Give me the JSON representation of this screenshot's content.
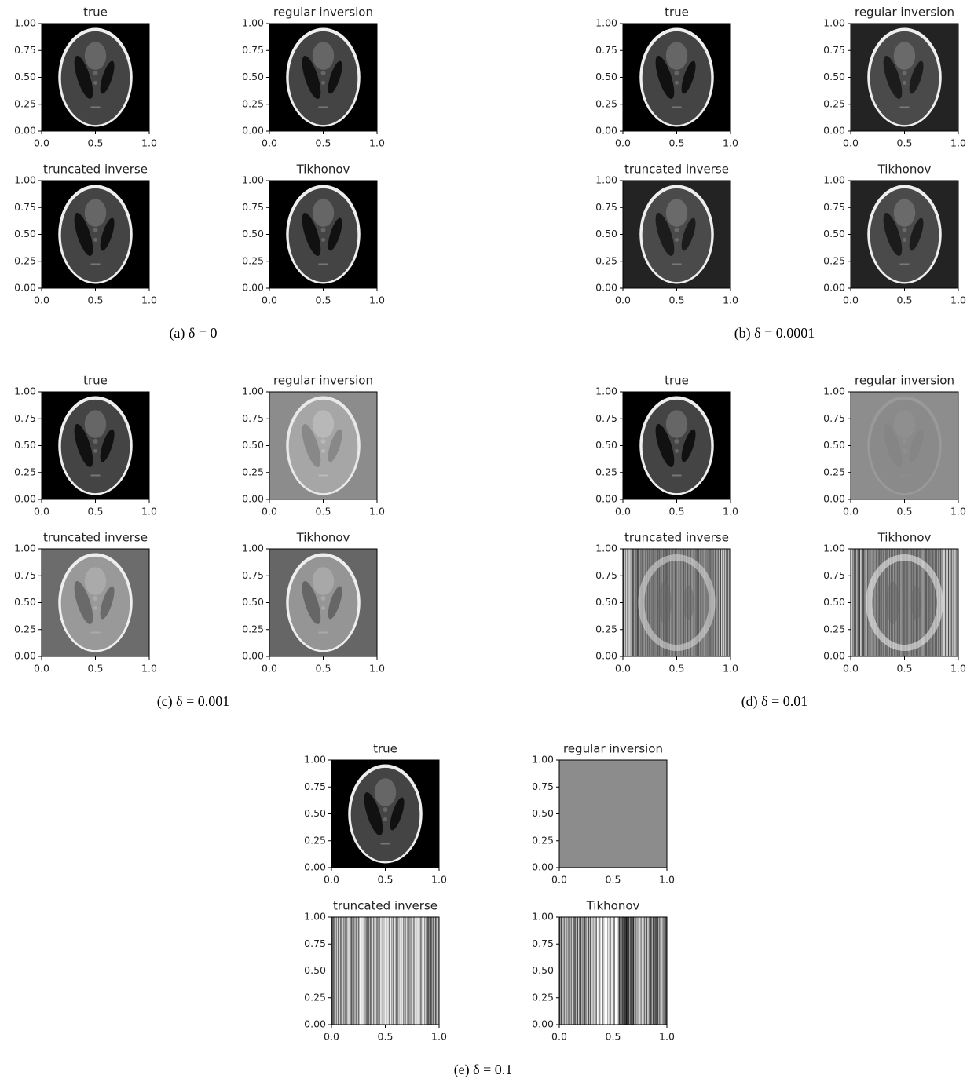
{
  "figures": [
    {
      "caption": "(a) δ = 0",
      "panels": [
        {
          "title": "true",
          "xlim": [
            0,
            1
          ],
          "ylim": [
            0,
            1
          ],
          "xticks": [
            {
              "value": 0,
              "label": "0.0"
            },
            {
              "value": 0.5,
              "label": "0.5"
            },
            {
              "value": 1,
              "label": "1.0"
            }
          ],
          "yticks": [
            {
              "value": 0,
              "label": "0.00"
            },
            {
              "value": 0.25,
              "label": "0.25"
            },
            {
              "value": 0.5,
              "label": "0.50"
            },
            {
              "value": 0.75,
              "label": "0.75"
            },
            {
              "value": 1,
              "label": "1.00"
            }
          ]
        },
        {
          "title": "regular inversion",
          "xlim": [
            0,
            1
          ],
          "ylim": [
            0,
            1
          ],
          "xticks": [
            {
              "value": 0,
              "label": "0.0"
            },
            {
              "value": 0.5,
              "label": "0.5"
            },
            {
              "value": 1,
              "label": "1.0"
            }
          ],
          "yticks": [
            {
              "value": 0,
              "label": "0.00"
            },
            {
              "value": 0.25,
              "label": "0.25"
            },
            {
              "value": 0.5,
              "label": "0.50"
            },
            {
              "value": 0.75,
              "label": "0.75"
            },
            {
              "value": 1,
              "label": "1.00"
            }
          ]
        },
        {
          "title": "truncated inverse",
          "xlim": [
            0,
            1
          ],
          "ylim": [
            0,
            1
          ],
          "xticks": [
            {
              "value": 0,
              "label": "0.0"
            },
            {
              "value": 0.5,
              "label": "0.5"
            },
            {
              "value": 1,
              "label": "1.0"
            }
          ],
          "yticks": [
            {
              "value": 0,
              "label": "0.00"
            },
            {
              "value": 0.25,
              "label": "0.25"
            },
            {
              "value": 0.5,
              "label": "0.50"
            },
            {
              "value": 0.75,
              "label": "0.75"
            },
            {
              "value": 1,
              "label": "1.00"
            }
          ]
        },
        {
          "title": "Tikhonov",
          "xlim": [
            0,
            1
          ],
          "ylim": [
            0,
            1
          ],
          "xticks": [
            {
              "value": 0,
              "label": "0.0"
            },
            {
              "value": 0.5,
              "label": "0.5"
            },
            {
              "value": 1,
              "label": "1.0"
            }
          ],
          "yticks": [
            {
              "value": 0,
              "label": "0.00"
            },
            {
              "value": 0.25,
              "label": "0.25"
            },
            {
              "value": 0.5,
              "label": "0.50"
            },
            {
              "value": 0.75,
              "label": "0.75"
            },
            {
              "value": 1,
              "label": "1.00"
            }
          ]
        }
      ]
    },
    {
      "caption": "(b) δ = 0.0001",
      "panels": [
        {
          "title": "true",
          "xlim": [
            0,
            1
          ],
          "ylim": [
            0,
            1
          ],
          "xticks": [
            {
              "value": 0,
              "label": "0.0"
            },
            {
              "value": 0.5,
              "label": "0.5"
            },
            {
              "value": 1,
              "label": "1.0"
            }
          ],
          "yticks": [
            {
              "value": 0,
              "label": "0.00"
            },
            {
              "value": 0.25,
              "label": "0.25"
            },
            {
              "value": 0.5,
              "label": "0.50"
            },
            {
              "value": 0.75,
              "label": "0.75"
            },
            {
              "value": 1,
              "label": "1.00"
            }
          ]
        },
        {
          "title": "regular inversion",
          "xlim": [
            0,
            1
          ],
          "ylim": [
            0,
            1
          ],
          "xticks": [
            {
              "value": 0,
              "label": "0.0"
            },
            {
              "value": 0.5,
              "label": "0.5"
            },
            {
              "value": 1,
              "label": "1.0"
            }
          ],
          "yticks": [
            {
              "value": 0,
              "label": "0.00"
            },
            {
              "value": 0.25,
              "label": "0.25"
            },
            {
              "value": 0.5,
              "label": "0.50"
            },
            {
              "value": 0.75,
              "label": "0.75"
            },
            {
              "value": 1,
              "label": "1.00"
            }
          ]
        },
        {
          "title": "truncated inverse",
          "xlim": [
            0,
            1
          ],
          "ylim": [
            0,
            1
          ],
          "xticks": [
            {
              "value": 0,
              "label": "0.0"
            },
            {
              "value": 0.5,
              "label": "0.5"
            },
            {
              "value": 1,
              "label": "1.0"
            }
          ],
          "yticks": [
            {
              "value": 0,
              "label": "0.00"
            },
            {
              "value": 0.25,
              "label": "0.25"
            },
            {
              "value": 0.5,
              "label": "0.50"
            },
            {
              "value": 0.75,
              "label": "0.75"
            },
            {
              "value": 1,
              "label": "1.00"
            }
          ]
        },
        {
          "title": "Tikhonov",
          "xlim": [
            0,
            1
          ],
          "ylim": [
            0,
            1
          ],
          "xticks": [
            {
              "value": 0,
              "label": "0.0"
            },
            {
              "value": 0.5,
              "label": "0.5"
            },
            {
              "value": 1,
              "label": "1.0"
            }
          ],
          "yticks": [
            {
              "value": 0,
              "label": "0.00"
            },
            {
              "value": 0.25,
              "label": "0.25"
            },
            {
              "value": 0.5,
              "label": "0.50"
            },
            {
              "value": 0.75,
              "label": "0.75"
            },
            {
              "value": 1,
              "label": "1.00"
            }
          ]
        }
      ]
    },
    {
      "caption": "(c) δ = 0.001",
      "panels": [
        {
          "title": "true",
          "xlim": [
            0,
            1
          ],
          "ylim": [
            0,
            1
          ],
          "xticks": [
            {
              "value": 0,
              "label": "0.0"
            },
            {
              "value": 0.5,
              "label": "0.5"
            },
            {
              "value": 1,
              "label": "1.0"
            }
          ],
          "yticks": [
            {
              "value": 0,
              "label": "0.00"
            },
            {
              "value": 0.25,
              "label": "0.25"
            },
            {
              "value": 0.5,
              "label": "0.50"
            },
            {
              "value": 0.75,
              "label": "0.75"
            },
            {
              "value": 1,
              "label": "1.00"
            }
          ]
        },
        {
          "title": "regular inversion",
          "xlim": [
            0,
            1
          ],
          "ylim": [
            0,
            1
          ],
          "xticks": [
            {
              "value": 0,
              "label": "0.0"
            },
            {
              "value": 0.5,
              "label": "0.5"
            },
            {
              "value": 1,
              "label": "1.0"
            }
          ],
          "yticks": [
            {
              "value": 0,
              "label": "0.00"
            },
            {
              "value": 0.25,
              "label": "0.25"
            },
            {
              "value": 0.5,
              "label": "0.50"
            },
            {
              "value": 0.75,
              "label": "0.75"
            },
            {
              "value": 1,
              "label": "1.00"
            }
          ]
        },
        {
          "title": "truncated inverse",
          "xlim": [
            0,
            1
          ],
          "ylim": [
            0,
            1
          ],
          "xticks": [
            {
              "value": 0,
              "label": "0.0"
            },
            {
              "value": 0.5,
              "label": "0.5"
            },
            {
              "value": 1,
              "label": "1.0"
            }
          ],
          "yticks": [
            {
              "value": 0,
              "label": "0.00"
            },
            {
              "value": 0.25,
              "label": "0.25"
            },
            {
              "value": 0.5,
              "label": "0.50"
            },
            {
              "value": 0.75,
              "label": "0.75"
            },
            {
              "value": 1,
              "label": "1.00"
            }
          ]
        },
        {
          "title": "Tikhonov",
          "xlim": [
            0,
            1
          ],
          "ylim": [
            0,
            1
          ],
          "xticks": [
            {
              "value": 0,
              "label": "0.0"
            },
            {
              "value": 0.5,
              "label": "0.5"
            },
            {
              "value": 1,
              "label": "1.0"
            }
          ],
          "yticks": [
            {
              "value": 0,
              "label": "0.00"
            },
            {
              "value": 0.25,
              "label": "0.25"
            },
            {
              "value": 0.5,
              "label": "0.50"
            },
            {
              "value": 0.75,
              "label": "0.75"
            },
            {
              "value": 1,
              "label": "1.00"
            }
          ]
        }
      ]
    },
    {
      "caption": "(d) δ = 0.01",
      "panels": [
        {
          "title": "true",
          "xlim": [
            0,
            1
          ],
          "ylim": [
            0,
            1
          ],
          "xticks": [
            {
              "value": 0,
              "label": "0.0"
            },
            {
              "value": 0.5,
              "label": "0.5"
            },
            {
              "value": 1,
              "label": "1.0"
            }
          ],
          "yticks": [
            {
              "value": 0,
              "label": "0.00"
            },
            {
              "value": 0.25,
              "label": "0.25"
            },
            {
              "value": 0.5,
              "label": "0.50"
            },
            {
              "value": 0.75,
              "label": "0.75"
            },
            {
              "value": 1,
              "label": "1.00"
            }
          ]
        },
        {
          "title": "regular inversion",
          "xlim": [
            0,
            1
          ],
          "ylim": [
            0,
            1
          ],
          "xticks": [
            {
              "value": 0,
              "label": "0.0"
            },
            {
              "value": 0.5,
              "label": "0.5"
            },
            {
              "value": 1,
              "label": "1.0"
            }
          ],
          "yticks": [
            {
              "value": 0,
              "label": "0.00"
            },
            {
              "value": 0.25,
              "label": "0.25"
            },
            {
              "value": 0.5,
              "label": "0.50"
            },
            {
              "value": 0.75,
              "label": "0.75"
            },
            {
              "value": 1,
              "label": "1.00"
            }
          ]
        },
        {
          "title": "truncated inverse",
          "xlim": [
            0,
            1
          ],
          "ylim": [
            0,
            1
          ],
          "xticks": [
            {
              "value": 0,
              "label": "0.0"
            },
            {
              "value": 0.5,
              "label": "0.5"
            },
            {
              "value": 1,
              "label": "1.0"
            }
          ],
          "yticks": [
            {
              "value": 0,
              "label": "0.00"
            },
            {
              "value": 0.25,
              "label": "0.25"
            },
            {
              "value": 0.5,
              "label": "0.50"
            },
            {
              "value": 0.75,
              "label": "0.75"
            },
            {
              "value": 1,
              "label": "1.00"
            }
          ]
        },
        {
          "title": "Tikhonov",
          "xlim": [
            0,
            1
          ],
          "ylim": [
            0,
            1
          ],
          "xticks": [
            {
              "value": 0,
              "label": "0.0"
            },
            {
              "value": 0.5,
              "label": "0.5"
            },
            {
              "value": 1,
              "label": "1.0"
            }
          ],
          "yticks": [
            {
              "value": 0,
              "label": "0.00"
            },
            {
              "value": 0.25,
              "label": "0.25"
            },
            {
              "value": 0.5,
              "label": "0.50"
            },
            {
              "value": 0.75,
              "label": "0.75"
            },
            {
              "value": 1,
              "label": "1.00"
            }
          ]
        }
      ]
    },
    {
      "caption": "(e) δ = 0.1",
      "panels": [
        {
          "title": "true",
          "xlim": [
            0,
            1
          ],
          "ylim": [
            0,
            1
          ],
          "xticks": [
            {
              "value": 0,
              "label": "0.0"
            },
            {
              "value": 0.5,
              "label": "0.5"
            },
            {
              "value": 1,
              "label": "1.0"
            }
          ],
          "yticks": [
            {
              "value": 0,
              "label": "0.00"
            },
            {
              "value": 0.25,
              "label": "0.25"
            },
            {
              "value": 0.5,
              "label": "0.50"
            },
            {
              "value": 0.75,
              "label": "0.75"
            },
            {
              "value": 1,
              "label": "1.00"
            }
          ]
        },
        {
          "title": "regular inversion",
          "xlim": [
            0,
            1
          ],
          "ylim": [
            0,
            1
          ],
          "xticks": [
            {
              "value": 0,
              "label": "0.0"
            },
            {
              "value": 0.5,
              "label": "0.5"
            },
            {
              "value": 1,
              "label": "1.0"
            }
          ],
          "yticks": [
            {
              "value": 0,
              "label": "0.00"
            },
            {
              "value": 0.25,
              "label": "0.25"
            },
            {
              "value": 0.5,
              "label": "0.50"
            },
            {
              "value": 0.75,
              "label": "0.75"
            },
            {
              "value": 1,
              "label": "1.00"
            }
          ]
        },
        {
          "title": "truncated inverse",
          "xlim": [
            0,
            1
          ],
          "ylim": [
            0,
            1
          ],
          "xticks": [
            {
              "value": 0,
              "label": "0.0"
            },
            {
              "value": 0.5,
              "label": "0.5"
            },
            {
              "value": 1,
              "label": "1.0"
            }
          ],
          "yticks": [
            {
              "value": 0,
              "label": "0.00"
            },
            {
              "value": 0.25,
              "label": "0.25"
            },
            {
              "value": 0.5,
              "label": "0.50"
            },
            {
              "value": 0.75,
              "label": "0.75"
            },
            {
              "value": 1,
              "label": "1.00"
            }
          ]
        },
        {
          "title": "Tikhonov",
          "xlim": [
            0,
            1
          ],
          "ylim": [
            0,
            1
          ],
          "xticks": [
            {
              "value": 0,
              "label": "0.0"
            },
            {
              "value": 0.5,
              "label": "0.5"
            },
            {
              "value": 1,
              "label": "1.0"
            }
          ],
          "yticks": [
            {
              "value": 0,
              "label": "0.00"
            },
            {
              "value": 0.25,
              "label": "0.25"
            },
            {
              "value": 0.5,
              "label": "0.50"
            },
            {
              "value": 0.75,
              "label": "0.75"
            },
            {
              "value": 1,
              "label": "1.00"
            }
          ]
        }
      ]
    }
  ]
}
